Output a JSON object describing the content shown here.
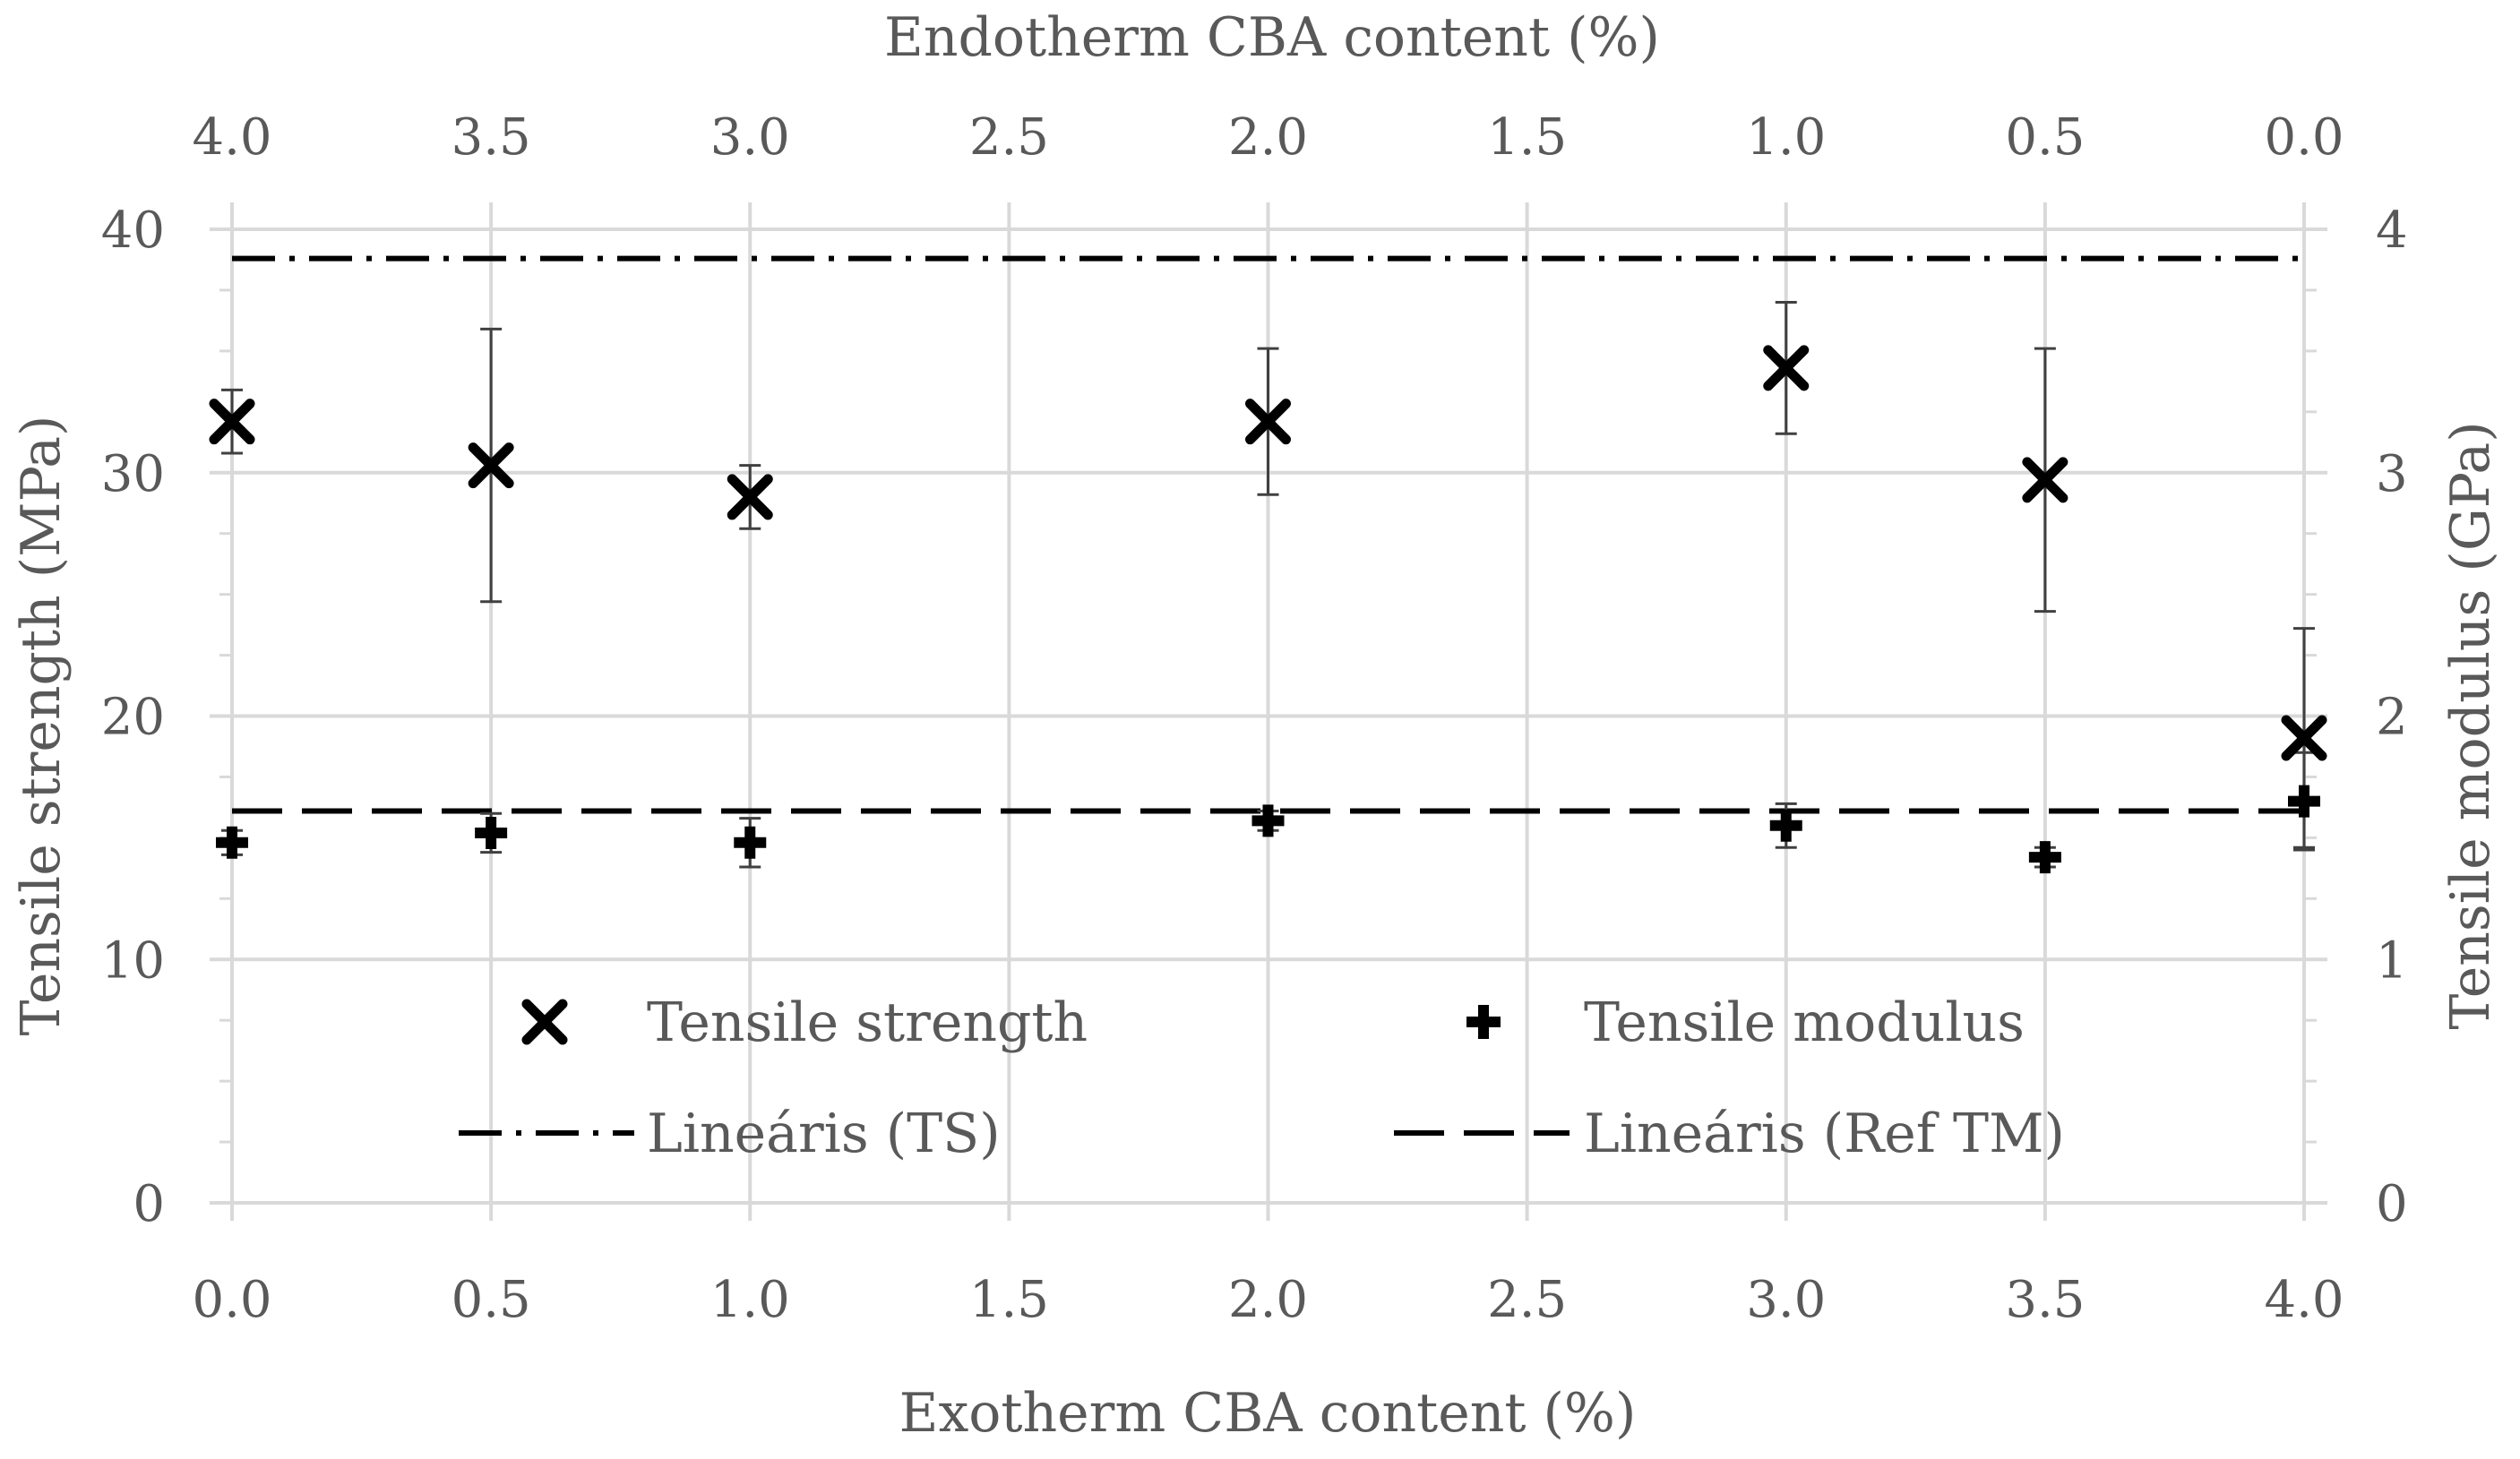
{
  "chart_data": {
    "type": "scatter",
    "bottom_axis": {
      "label": "Exotherm CBA content (%)",
      "range": [
        0,
        4
      ],
      "ticks": [
        "0.0",
        "0.5",
        "1.0",
        "1.5",
        "2.0",
        "2.5",
        "3.0",
        "3.5",
        "4.0"
      ]
    },
    "top_axis": {
      "label": "Endotherm CBA content (%)",
      "range": [
        4,
        0
      ],
      "ticks": [
        "4.0",
        "3.5",
        "3.0",
        "2.5",
        "2.0",
        "1.5",
        "1.0",
        "0.5",
        "0.0"
      ]
    },
    "left_axis": {
      "label": "Tensile strength (MPa)",
      "range": [
        0,
        40
      ],
      "ticks": [
        "0",
        "10",
        "20",
        "30",
        "40"
      ]
    },
    "right_axis": {
      "label": "Tensile modulus (GPa)",
      "range": [
        0,
        4
      ],
      "ticks": [
        "0",
        "1",
        "2",
        "3",
        "4"
      ]
    },
    "grid": true,
    "series": [
      {
        "name": "Tensile strength",
        "axis": "left",
        "marker": "x",
        "x": [
          0,
          0.5,
          1.0,
          2.0,
          3.0,
          3.5,
          4.0
        ],
        "y": [
          32.1,
          30.3,
          29.0,
          32.1,
          34.3,
          29.7,
          19.1
        ],
        "err": [
          1.3,
          5.6,
          1.3,
          3.0,
          2.7,
          5.4,
          4.5
        ]
      },
      {
        "name": "Tensile modulus",
        "axis": "right",
        "marker": "plus",
        "x": [
          0,
          0.5,
          1.0,
          2.0,
          3.0,
          3.5,
          4.0
        ],
        "y": [
          1.48,
          1.52,
          1.48,
          1.57,
          1.55,
          1.42,
          1.65
        ],
        "err": [
          0.05,
          0.08,
          0.1,
          0.04,
          0.09,
          0.04,
          0.2
        ]
      }
    ],
    "reference_lines": [
      {
        "name": "Lineáris (TS)",
        "axis": "left",
        "value": 38.8,
        "style": "dash-dot"
      },
      {
        "name": "Lineáris (Ref TM)",
        "axis": "right",
        "value": 1.61,
        "style": "dashed"
      }
    ],
    "legend": {
      "placement": "bottom-center",
      "entries": [
        "Tensile strength",
        "Tensile modulus",
        "Lineáris (TS)",
        "Lineáris (Ref TM)"
      ]
    },
    "colors": {
      "marker": "#000000",
      "grid": "#d9d9d9",
      "text": "#595959",
      "error_bar": "#404040"
    }
  }
}
